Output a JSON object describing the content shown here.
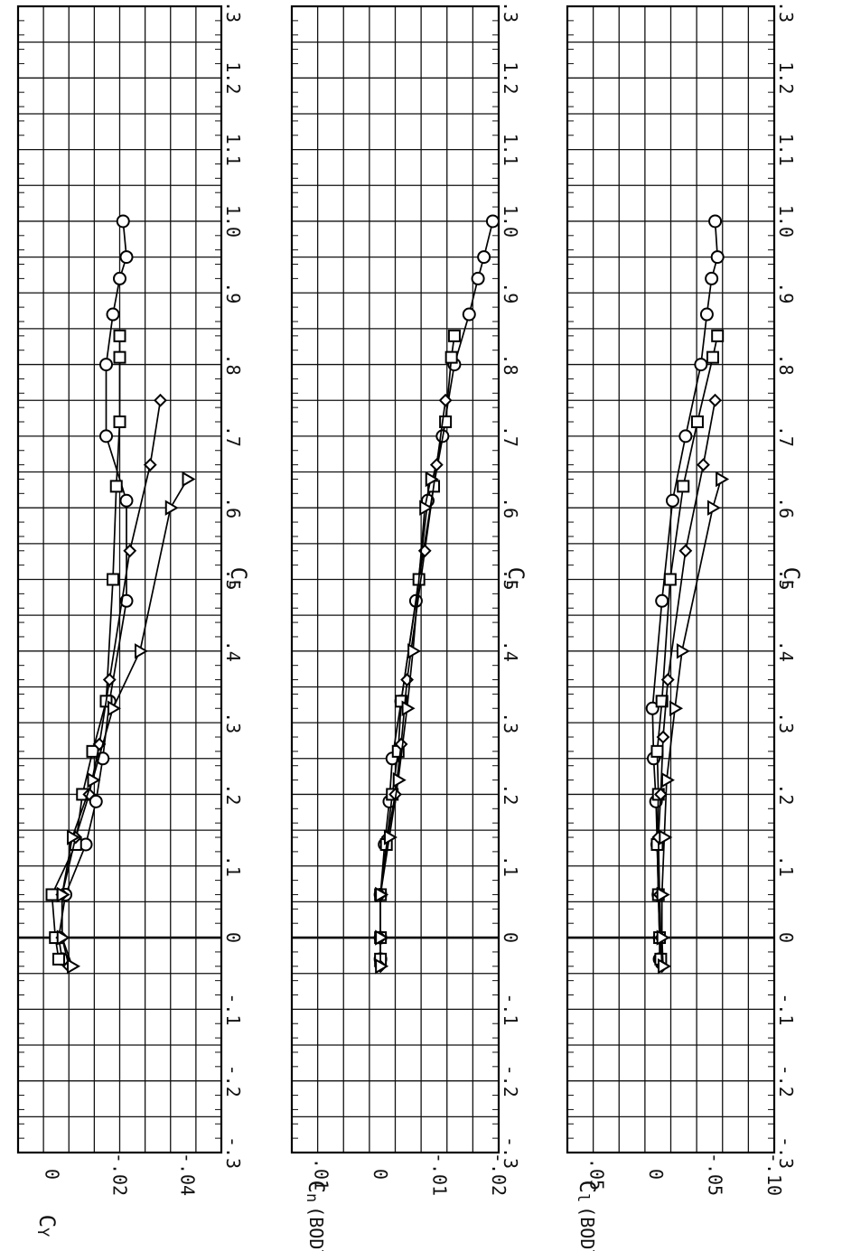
{
  "chart_data": [
    {
      "type": "line",
      "ylabel": "CY",
      "ylabel_main": "C",
      "ylabel_sub": "Y",
      "xlabel": "CL",
      "xlabel_main": "C",
      "xlabel_sub": "L",
      "xlim": [
        -0.3,
        1.3
      ],
      "ylim": [
        0.01,
        -0.05
      ],
      "y_tick_values": [
        0,
        -0.02,
        -0.04
      ],
      "y_tick_labels": [
        "0",
        "-.02",
        "-.04"
      ],
      "x_tick_values": [
        -0.3,
        -0.2,
        -0.1,
        0,
        0.1,
        0.2,
        0.3,
        0.4,
        0.5,
        0.6,
        0.7,
        0.8,
        0.9,
        1.0,
        1.1,
        1.2,
        1.3
      ],
      "x_tick_labels": [
        "-.3",
        "-.2",
        "-.1",
        "0",
        ".1",
        ".2",
        ".3",
        ".4",
        ".5",
        ".6",
        ".7",
        ".8",
        ".9",
        "1.0",
        "1.1",
        "1.2",
        "1.3"
      ],
      "grid": true,
      "series": [
        {
          "marker": "circle",
          "x": [
            -0.03,
            0.0,
            0.06,
            0.13,
            0.19,
            0.25,
            0.33,
            0.47,
            0.61,
            0.7,
            0.8,
            0.87,
            0.92,
            0.95,
            1.0
          ],
          "y": [
            -0.003,
            -0.002,
            -0.004,
            -0.01,
            -0.013,
            -0.015,
            -0.017,
            -0.022,
            -0.022,
            -0.016,
            -0.016,
            -0.018,
            -0.02,
            -0.022,
            -0.021
          ]
        },
        {
          "marker": "square",
          "x": [
            -0.03,
            0.0,
            0.06,
            0.13,
            0.2,
            0.26,
            0.33,
            0.5,
            0.63,
            0.72,
            0.81,
            0.84
          ],
          "y": [
            -0.002,
            -0.001,
            0.0,
            -0.007,
            -0.009,
            -0.012,
            -0.016,
            -0.018,
            -0.019,
            -0.02,
            -0.02,
            -0.02
          ]
        },
        {
          "marker": "diamond",
          "x": [
            -0.04,
            0.0,
            0.06,
            0.14,
            0.2,
            0.27,
            0.36,
            0.54,
            0.66,
            0.75
          ],
          "y": [
            -0.005,
            -0.003,
            -0.003,
            -0.007,
            -0.011,
            -0.014,
            -0.017,
            -0.023,
            -0.029,
            -0.032
          ]
        },
        {
          "marker": "triangle",
          "x": [
            -0.04,
            0.0,
            0.06,
            0.14,
            0.22,
            0.32,
            0.4,
            0.6,
            0.64
          ],
          "y": [
            -0.006,
            -0.003,
            -0.003,
            -0.006,
            -0.012,
            -0.018,
            -0.026,
            -0.035,
            -0.04
          ]
        }
      ]
    },
    {
      "type": "line",
      "ylabel": "Cn (BODY)",
      "ylabel_main": "C",
      "ylabel_sub": "n",
      "ylabel_suffix": "(BODY)",
      "xlabel": "CL",
      "xlabel_main": "C",
      "xlabel_sub": "L",
      "xlim": [
        -0.3,
        1.3
      ],
      "ylim": [
        0.015,
        -0.02
      ],
      "y_tick_values": [
        0.01,
        0,
        -0.01,
        -0.02
      ],
      "y_tick_labels": [
        ".01",
        "0",
        "-.01",
        "-.02"
      ],
      "x_tick_values": [
        -0.3,
        -0.2,
        -0.1,
        0,
        0.1,
        0.2,
        0.3,
        0.4,
        0.5,
        0.6,
        0.7,
        0.8,
        0.9,
        1.0,
        1.1,
        1.2,
        1.3
      ],
      "x_tick_labels": [
        "-.3",
        "-.2",
        "-.1",
        "0",
        ".1",
        ".2",
        ".3",
        ".4",
        ".5",
        ".6",
        ".7",
        ".8",
        ".9",
        "1.0",
        "1.1",
        "1.2",
        "1.3"
      ],
      "grid": true,
      "series": [
        {
          "marker": "circle",
          "x": [
            -0.03,
            0.0,
            0.06,
            0.13,
            0.19,
            0.25,
            0.33,
            0.47,
            0.61,
            0.7,
            0.8,
            0.87,
            0.92,
            0.95,
            1.0
          ],
          "y": [
            0.0,
            0.0,
            0.0,
            -0.0007,
            -0.0015,
            -0.002,
            -0.0035,
            -0.006,
            -0.008,
            -0.0105,
            -0.0125,
            -0.015,
            -0.0165,
            -0.0175,
            -0.019
          ]
        },
        {
          "marker": "square",
          "x": [
            -0.03,
            0.0,
            0.06,
            0.13,
            0.2,
            0.26,
            0.33,
            0.5,
            0.63,
            0.72,
            0.81,
            0.84
          ],
          "y": [
            0.0,
            0.0,
            0.0,
            -0.001,
            -0.002,
            -0.003,
            -0.0035,
            -0.0065,
            -0.009,
            -0.011,
            -0.012,
            -0.0125
          ]
        },
        {
          "marker": "diamond",
          "x": [
            -0.04,
            0.0,
            0.06,
            0.14,
            0.2,
            0.27,
            0.36,
            0.54,
            0.66,
            0.75
          ],
          "y": [
            0.0,
            0.0,
            0.0,
            -0.0012,
            -0.0025,
            -0.0035,
            -0.0045,
            -0.0075,
            -0.0095,
            -0.011
          ]
        },
        {
          "marker": "triangle",
          "x": [
            -0.04,
            0.0,
            0.06,
            0.14,
            0.22,
            0.32,
            0.4,
            0.6,
            0.64
          ],
          "y": [
            0.0,
            0.0,
            0.0,
            -0.0015,
            -0.003,
            -0.0045,
            -0.0055,
            -0.0075,
            -0.0085
          ]
        }
      ]
    },
    {
      "type": "line",
      "ylabel": "Cl (BODY)",
      "ylabel_main": "C",
      "ylabel_sub": "l",
      "ylabel_suffix": "(BODY)",
      "xlabel": "CL",
      "xlabel_main": "C",
      "xlabel_sub": "L",
      "xlim": [
        -0.3,
        1.3
      ],
      "ylim": [
        0.075,
        -0.1
      ],
      "y_tick_values": [
        0.05,
        0,
        -0.05,
        -0.1
      ],
      "y_tick_labels": [
        ".05",
        "0",
        "-.05",
        "-.10"
      ],
      "x_tick_values": [
        -0.3,
        -0.2,
        -0.1,
        0,
        0.1,
        0.2,
        0.3,
        0.4,
        0.5,
        0.6,
        0.7,
        0.8,
        0.9,
        1.0,
        1.1,
        1.2,
        1.3
      ],
      "x_tick_labels": [
        "-.3",
        "-.2",
        "-.1",
        "0",
        ".1",
        ".2",
        ".3",
        ".4",
        ".5",
        ".6",
        ".7",
        ".8",
        ".9",
        "1.0",
        "1.1",
        "1.2",
        "1.3"
      ],
      "grid": true,
      "series": [
        {
          "marker": "circle",
          "x": [
            -0.03,
            0.0,
            0.06,
            0.13,
            0.19,
            0.25,
            0.32,
            0.47,
            0.61,
            0.7,
            0.8,
            0.87,
            0.92,
            0.95,
            1.0
          ],
          "y": [
            -0.003,
            -0.003,
            -0.002,
            -0.001,
            0.0,
            0.002,
            0.003,
            -0.005,
            -0.014,
            -0.025,
            -0.038,
            -0.043,
            -0.047,
            -0.052,
            -0.05
          ]
        },
        {
          "marker": "square",
          "x": [
            -0.03,
            0.0,
            0.06,
            0.13,
            0.2,
            0.26,
            0.33,
            0.5,
            0.63,
            0.72,
            0.81,
            0.84
          ],
          "y": [
            -0.004,
            -0.003,
            -0.002,
            -0.001,
            -0.002,
            -0.001,
            -0.005,
            -0.012,
            -0.023,
            -0.035,
            -0.048,
            -0.052
          ]
        },
        {
          "marker": "diamond",
          "x": [
            -0.04,
            0.0,
            0.06,
            0.14,
            0.2,
            0.28,
            0.36,
            0.54,
            0.66,
            0.75
          ],
          "y": [
            -0.005,
            -0.004,
            -0.003,
            -0.002,
            -0.004,
            -0.006,
            -0.01,
            -0.025,
            -0.04,
            -0.05
          ]
        },
        {
          "marker": "triangle",
          "x": [
            -0.04,
            0.0,
            0.06,
            0.14,
            0.22,
            0.32,
            0.4,
            0.6,
            0.64
          ],
          "y": [
            -0.006,
            -0.005,
            -0.005,
            -0.007,
            -0.009,
            -0.016,
            -0.022,
            -0.048,
            -0.055
          ]
        }
      ]
    }
  ]
}
